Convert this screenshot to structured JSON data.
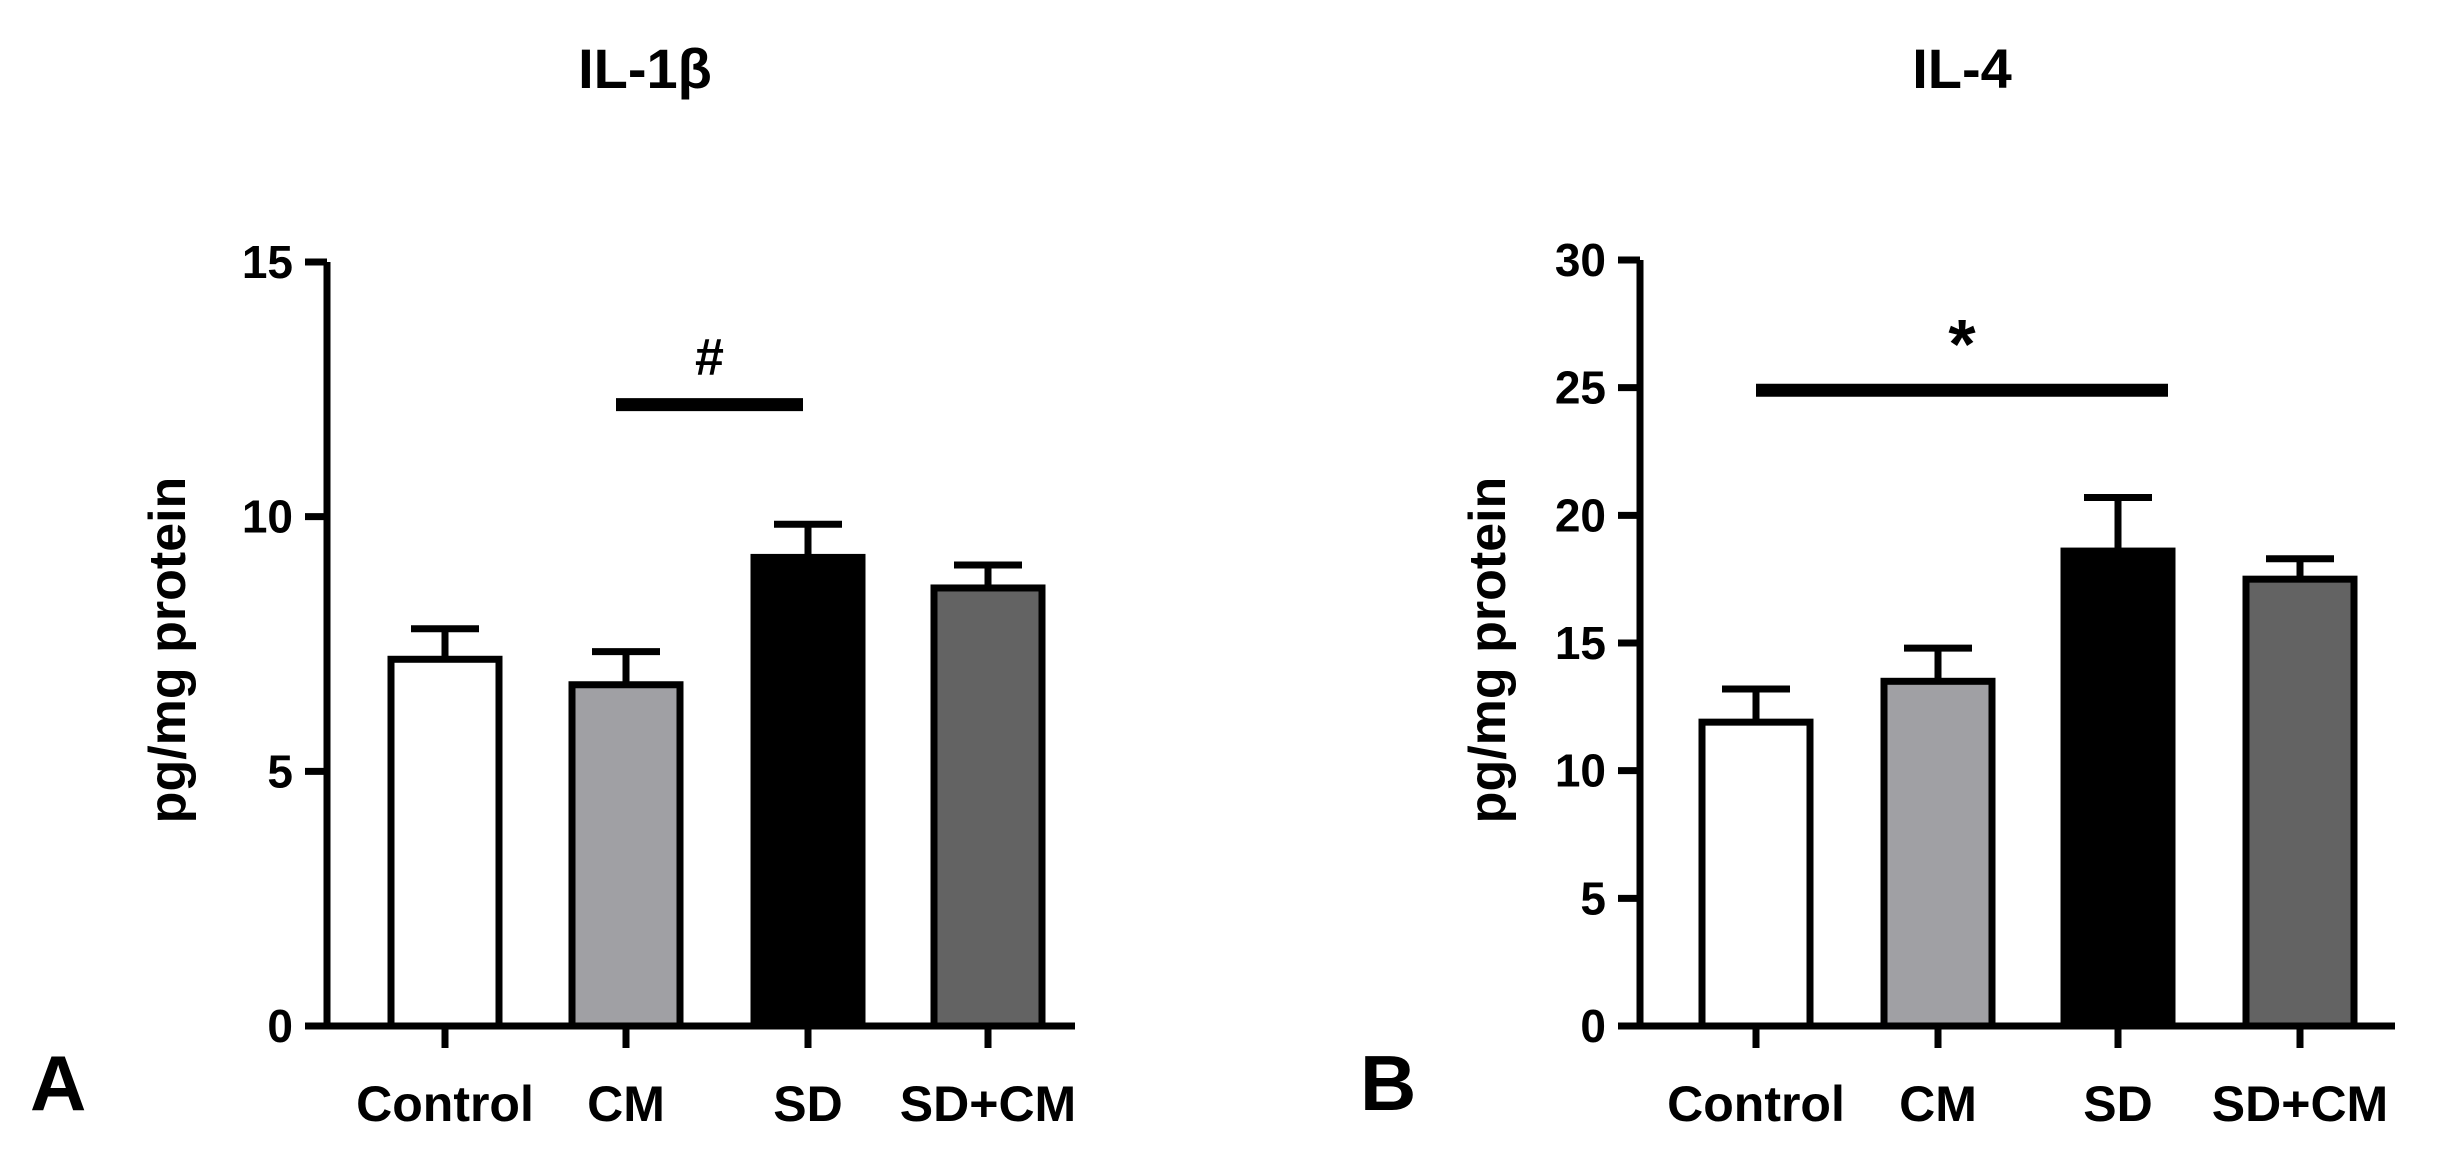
{
  "chart_data": [
    {
      "type": "bar",
      "panel_label": "A",
      "title": "IL-1β",
      "xlabel": "",
      "ylabel": "pg/mg protein",
      "ylim": [
        0,
        15
      ],
      "yticks": [
        0,
        5,
        10,
        15
      ],
      "categories": [
        "Control",
        "CM",
        "SD",
        "SD+CM"
      ],
      "values": [
        7.2,
        6.7,
        9.2,
        8.6
      ],
      "errors": [
        0.6,
        0.65,
        0.65,
        0.45
      ],
      "bar_colors": [
        "#ffffff",
        "#a0a0a4",
        "#000000",
        "#636363"
      ],
      "significance": [
        {
          "symbol": "#",
          "from": 1,
          "to": 2,
          "y": 12.2
        }
      ]
    },
    {
      "type": "bar",
      "panel_label": "B",
      "title": "IL-4",
      "xlabel": "",
      "ylabel": "pg/mg protein",
      "ylim": [
        0,
        30
      ],
      "yticks": [
        0,
        5,
        10,
        15,
        20,
        25,
        30
      ],
      "categories": [
        "Control",
        "CM",
        "SD",
        "SD+CM"
      ],
      "values": [
        11.9,
        13.5,
        18.6,
        17.5
      ],
      "errors": [
        1.3,
        1.3,
        2.1,
        0.8
      ],
      "bar_colors": [
        "#ffffff",
        "#a0a0a4",
        "#000000",
        "#636363"
      ],
      "significance": [
        {
          "symbol": "*",
          "from": 0,
          "to": 2,
          "y": 24.9
        }
      ]
    }
  ]
}
